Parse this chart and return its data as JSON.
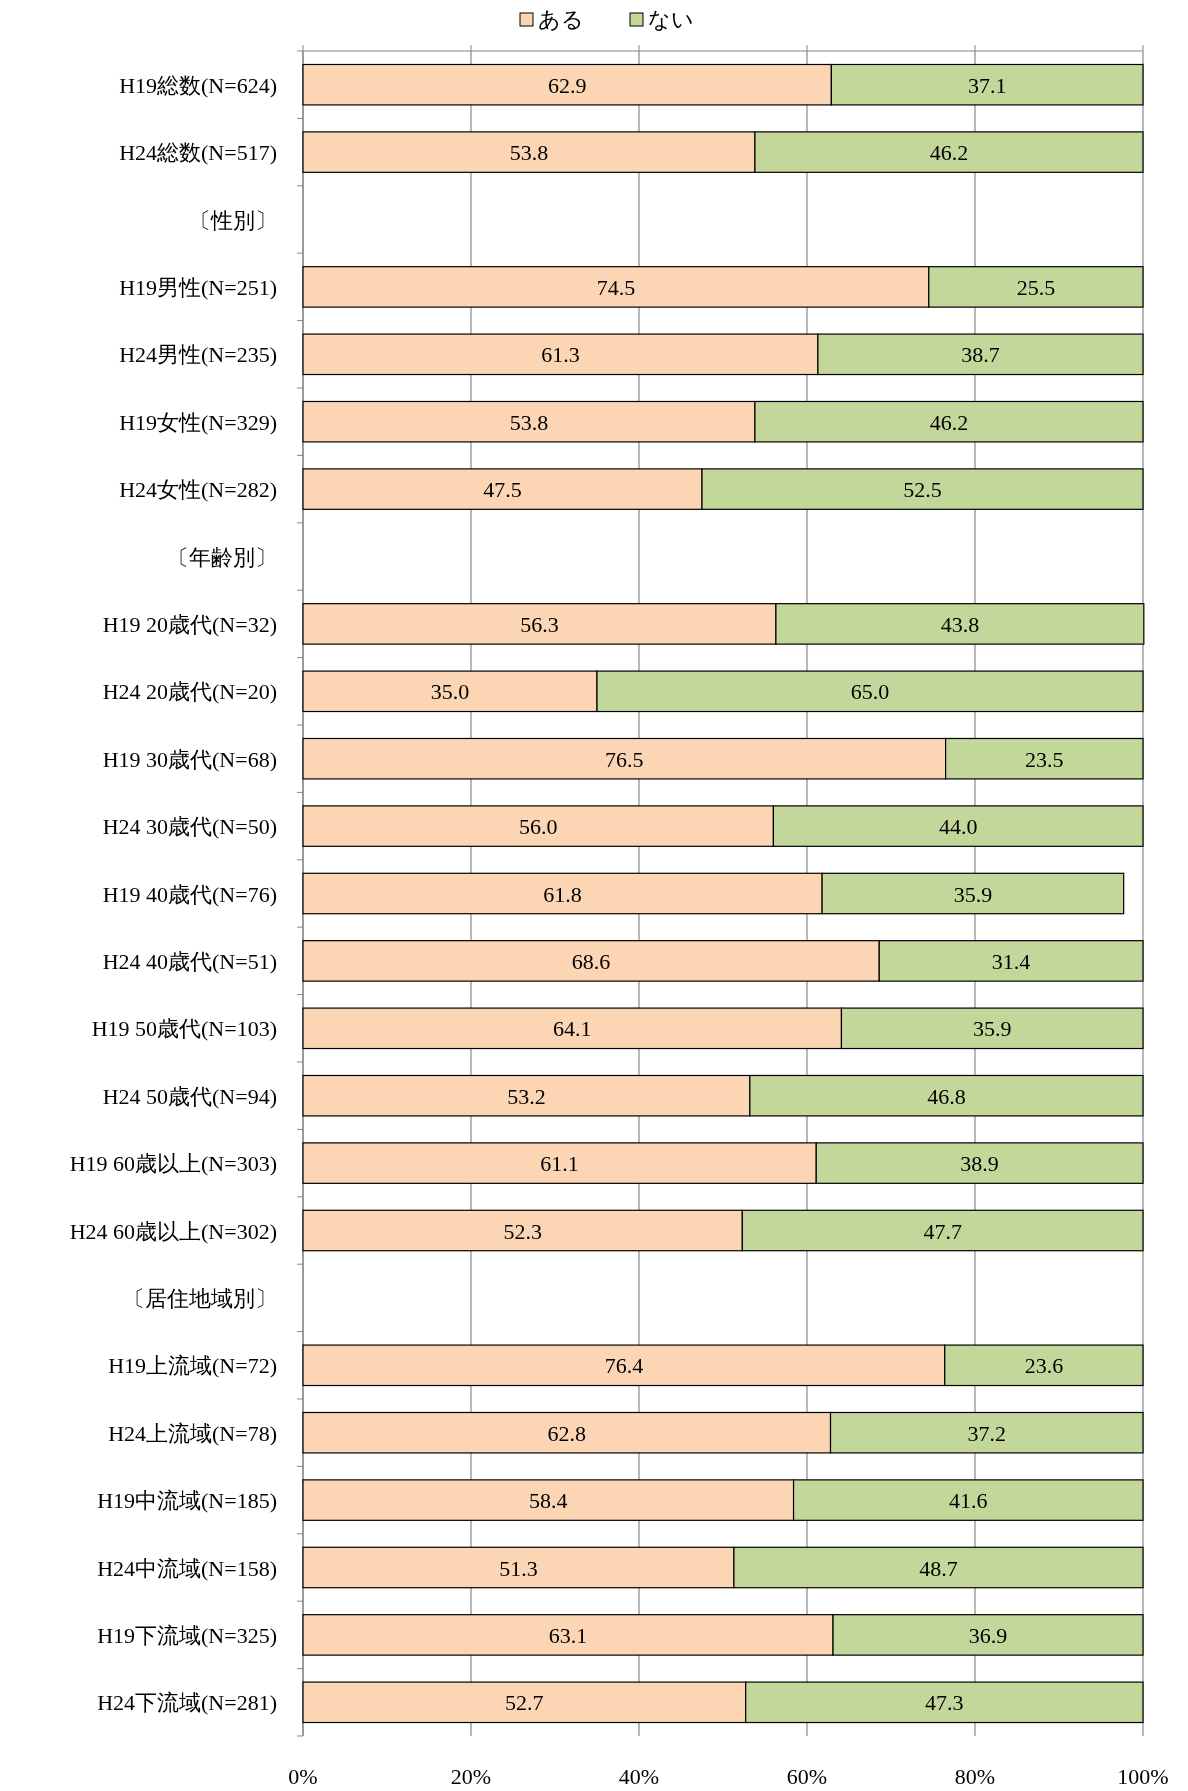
{
  "chart_data": {
    "type": "bar",
    "orientation": "horizontal",
    "stacked": true,
    "legend": "top",
    "grid": "x",
    "categories": [
      "H19総数(N=624)",
      "H24総数(N=517)",
      "〔性別〕",
      "H19男性(N=251)",
      "H24男性(N=235)",
      "H19女性(N=329)",
      "H24女性(N=282)",
      "〔年齢別〕",
      "H19 20歳代(N=32)",
      "H24 20歳代(N=20)",
      "H19 30歳代(N=68)",
      "H24 30歳代(N=50)",
      "H19 40歳代(N=76)",
      "H24 40歳代(N=51)",
      "H19 50歳代(N=103)",
      "H24 50歳代(N=94)",
      "H19 60歳以上(N=303)",
      "H24 60歳以上(N=302)",
      "〔居住地域別〕",
      "H19上流域(N=72)",
      "H24上流域(N=78)",
      "H19中流域(N=185)",
      "H24中流域(N=158)",
      "H19下流域(N=325)",
      "H24下流域(N=281)"
    ],
    "xlim": [
      0,
      100
    ],
    "xticks": [
      {
        "value": 0,
        "label": "0%"
      },
      {
        "value": 20,
        "label": "20%"
      },
      {
        "value": 40,
        "label": "40%"
      },
      {
        "value": 60,
        "label": "60%"
      },
      {
        "value": 80,
        "label": "80%"
      },
      {
        "value": 100,
        "label": "100%"
      }
    ],
    "series": [
      {
        "name": "ある",
        "color": "#fcd5b5",
        "values": [
          62.9,
          53.8,
          null,
          74.5,
          61.3,
          53.8,
          47.5,
          null,
          56.3,
          35.0,
          76.5,
          56.0,
          61.8,
          68.6,
          64.1,
          53.2,
          61.1,
          52.3,
          null,
          76.4,
          62.8,
          58.4,
          51.3,
          63.1,
          52.7
        ],
        "value_labels": [
          "62.9",
          "53.8",
          null,
          "74.5",
          "61.3",
          "53.8",
          "47.5",
          null,
          "56.3",
          "35.0",
          "76.5",
          "56.0",
          "61.8",
          "68.6",
          "64.1",
          "53.2",
          "61.1",
          "52.3",
          null,
          "76.4",
          "62.8",
          "58.4",
          "51.3",
          "63.1",
          "52.7"
        ]
      },
      {
        "name": "ない",
        "color": "#c4d79b",
        "values": [
          37.1,
          46.2,
          null,
          25.5,
          38.7,
          46.2,
          52.5,
          null,
          43.8,
          65.0,
          23.5,
          44.0,
          35.9,
          31.4,
          35.9,
          46.8,
          38.9,
          47.7,
          null,
          23.6,
          37.2,
          41.6,
          48.7,
          36.9,
          47.3
        ],
        "value_labels": [
          "37.1",
          "46.2",
          null,
          "25.5",
          "38.7",
          "46.2",
          "52.5",
          null,
          "43.8",
          "65.0",
          "23.5",
          "44.0",
          "35.9",
          "31.4",
          "35.9",
          "46.8",
          "38.9",
          "47.7",
          null,
          "23.6",
          "37.2",
          "41.6",
          "48.7",
          "36.9",
          "47.3"
        ]
      }
    ]
  }
}
